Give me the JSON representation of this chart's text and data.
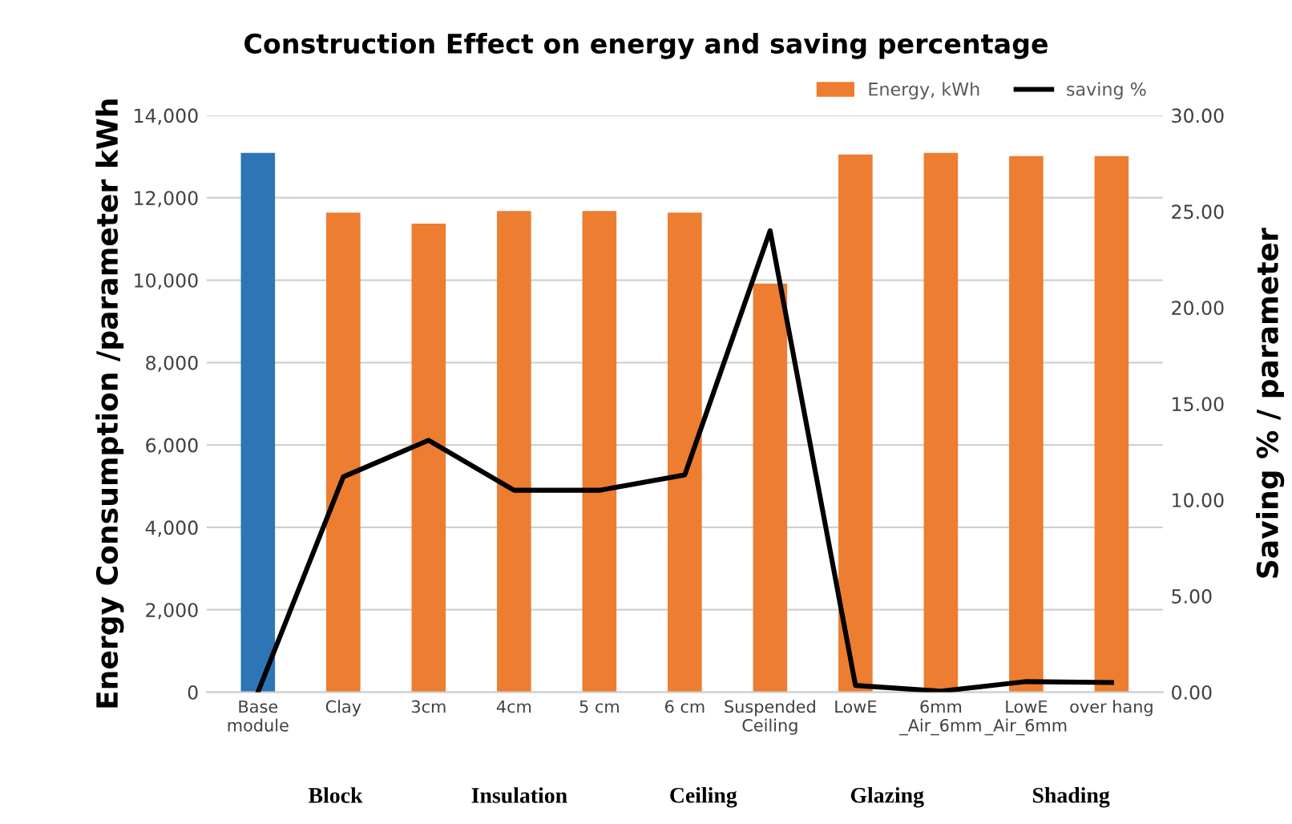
{
  "chart_data": {
    "type": "bar",
    "title": "Construction Effect on energy and saving percentage",
    "categories": [
      "Base\nmodule",
      "Clay",
      "3cm",
      "4cm",
      "5 cm",
      "6 cm",
      "Suspended\nCeiling",
      "LowE",
      "6mm\n_Air_6mm",
      "LowE\n_Air_6mm",
      "over hang"
    ],
    "series": [
      {
        "name": "Energy, kWh",
        "color": "#ed7d31",
        "colors": [
          "#2e75b6",
          "#ed7d31",
          "#ed7d31",
          "#ed7d31",
          "#ed7d31",
          "#ed7d31",
          "#ed7d31",
          "#ed7d31",
          "#ed7d31",
          "#ed7d31",
          "#ed7d31"
        ],
        "values": [
          13090,
          11640,
          11370,
          11680,
          11680,
          11640,
          9920,
          13050,
          13090,
          13010,
          13010
        ]
      },
      {
        "name": "saving %",
        "type": "line",
        "axis": "y2",
        "color": "#000000",
        "values": [
          0,
          11.2,
          13.1,
          10.5,
          10.5,
          11.3,
          24.0,
          0.35,
          0.05,
          0.55,
          0.5
        ]
      }
    ],
    "ylabel": "Energy Consumption /parameter kWh",
    "y2label": "Saving % / parameter",
    "ylim": [
      0,
      14000
    ],
    "yticks": [
      {
        "value": 0,
        "label": "0"
      },
      {
        "value": 2000,
        "label": "2,000"
      },
      {
        "value": 4000,
        "label": "4,000"
      },
      {
        "value": 6000,
        "label": "6,000"
      },
      {
        "value": 8000,
        "label": "8,000"
      },
      {
        "value": 10000,
        "label": "10,000"
      },
      {
        "value": 12000,
        "label": "12,000"
      },
      {
        "value": 14000,
        "label": "14,000"
      }
    ],
    "y2lim": [
      0,
      30
    ],
    "y2ticks": [
      {
        "value": 0,
        "label": "0.00"
      },
      {
        "value": 5,
        "label": "5.00"
      },
      {
        "value": 10,
        "label": "10.00"
      },
      {
        "value": 15,
        "label": "15.00"
      },
      {
        "value": 20,
        "label": "20.00"
      },
      {
        "value": 25,
        "label": "25.00"
      },
      {
        "value": 30,
        "label": "30.00"
      }
    ],
    "annotations": [
      "Block",
      "Insulation",
      "Ceiling",
      "Glazing",
      "Shading"
    ],
    "grid": "y",
    "legend": "top right",
    "line_style": "solid"
  }
}
